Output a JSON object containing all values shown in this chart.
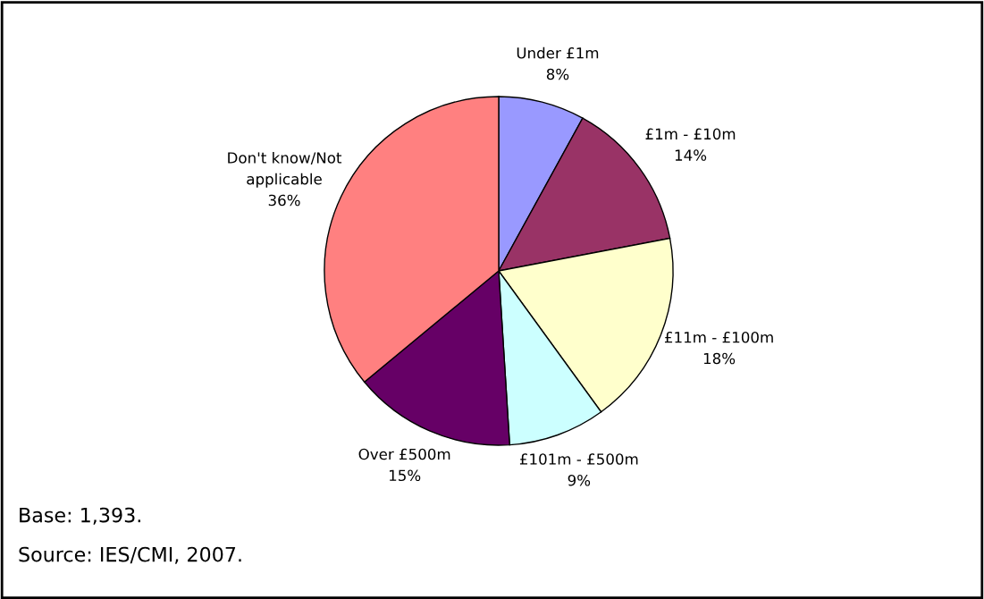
{
  "chart_data": {
    "type": "pie",
    "categories": [
      "Under £1m",
      "£1m - £10m",
      "£11m - £100m",
      "£101m - £500m",
      "Over £500m",
      "Don't know/Not\napplicable"
    ],
    "values": [
      8,
      14,
      18,
      9,
      15,
      36
    ],
    "value_labels": [
      "8%",
      "14%",
      "18%",
      "9%",
      "15%",
      "36%"
    ],
    "colors": [
      "#9999ff",
      "#993366",
      "#ffffcc",
      "#ccffff",
      "#660066",
      "#ff8080"
    ],
    "annotations": [
      "Base: 1,393.",
      "Source: IES/CMI, 2007."
    ]
  }
}
